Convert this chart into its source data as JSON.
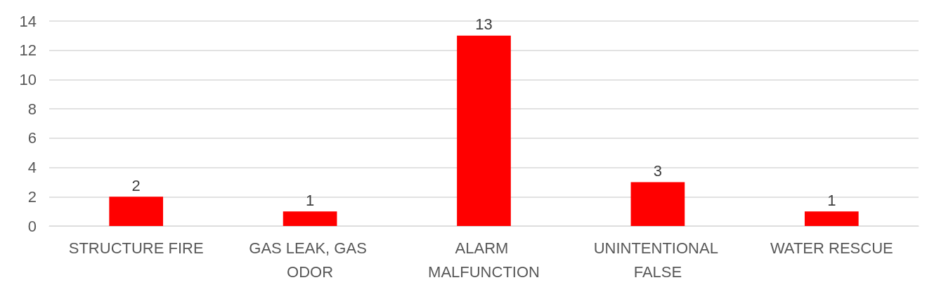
{
  "chart_data": {
    "type": "bar",
    "categories": [
      "STRUCTURE FIRE",
      "GAS LEAK, GAS ODOR",
      "ALARM MALFUNCTION",
      "UNINTENTIONAL FALSE",
      "WATER RESCUE"
    ],
    "values": [
      2,
      1,
      13,
      3,
      1
    ],
    "color": "#ff0000",
    "ylim": [
      0,
      14
    ],
    "yticks": [
      0,
      2,
      4,
      6,
      8,
      10,
      12,
      14
    ],
    "grid": "y",
    "data_labels": true
  }
}
